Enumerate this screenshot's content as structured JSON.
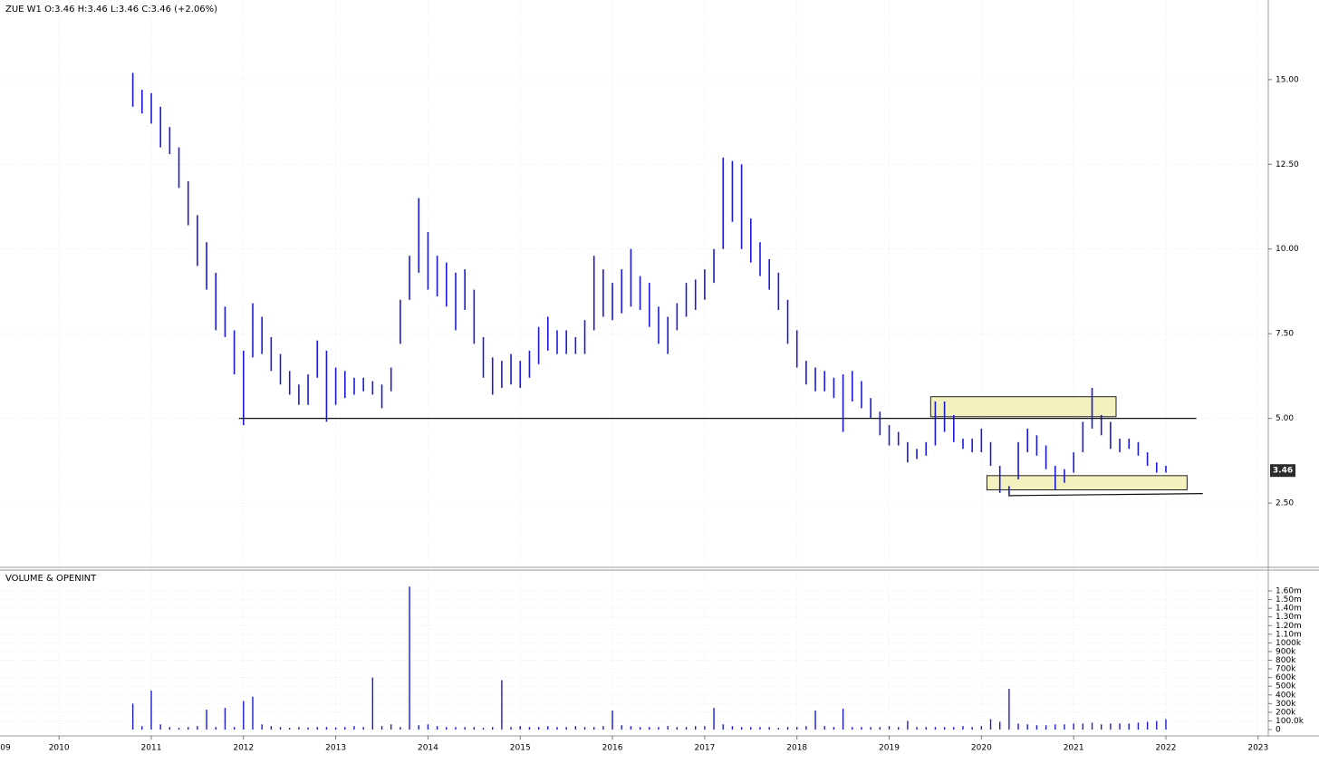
{
  "chart_data": {
    "type": "ohlc",
    "legend_text": "ZUE  W1  O:3.46  H:3.46  L:3.46  C:3.46  (+2.06%)",
    "volume_title": "VOLUME & OPENINT",
    "color": "#1a1ad6",
    "volume_color": "#1a1ad6",
    "grid": true,
    "last_price": 3.46,
    "xlim": [
      2009.36,
      2023.11
    ],
    "xticks": [
      {
        "value": 2009,
        "label": "09"
      },
      2010,
      2011,
      2012,
      2013,
      2014,
      2015,
      2016,
      2017,
      2018,
      2019,
      2020,
      2021,
      2022,
      2023
    ],
    "ylim": [
      0.63,
      17.35
    ],
    "yticks": [
      {
        "value": 2.5,
        "label": "2.50"
      },
      {
        "value": 5,
        "label": "5.00"
      },
      {
        "value": 7.5,
        "label": "7.50"
      },
      {
        "value": 10,
        "label": "10.00"
      },
      {
        "value": 12.5,
        "label": "12.50"
      },
      {
        "value": 15,
        "label": "15.00"
      }
    ],
    "volume_ylim": [
      -73000,
      1830000
    ],
    "volume_yticks": [
      0,
      {
        "value": 100000,
        "label": "100.0k"
      },
      {
        "value": 200000,
        "label": "200k"
      },
      {
        "value": 300000,
        "label": "300k"
      },
      {
        "value": 400000,
        "label": "400k"
      },
      {
        "value": 500000,
        "label": "500k"
      },
      {
        "value": 600000,
        "label": "600k"
      },
      {
        "value": 700000,
        "label": "700k"
      },
      {
        "value": 800000,
        "label": "800k"
      },
      {
        "value": 900000,
        "label": "900k"
      },
      {
        "value": 1000000,
        "label": "1000k"
      },
      {
        "value": 1100000,
        "label": "1.10m"
      },
      {
        "value": 1200000,
        "label": "1.20m"
      },
      {
        "value": 1300000,
        "label": "1.30m"
      },
      {
        "value": 1400000,
        "label": "1.40m"
      },
      {
        "value": 1500000,
        "label": "1.50m"
      },
      {
        "value": 1600000,
        "label": "1.60m"
      }
    ],
    "x": [
      2010.8,
      2010.9,
      2011.0,
      2011.1,
      2011.2,
      2011.3,
      2011.4,
      2011.5,
      2011.6,
      2011.7,
      2011.8,
      2011.9,
      2012.0,
      2012.1,
      2012.2,
      2012.3,
      2012.4,
      2012.5,
      2012.6,
      2012.7,
      2012.8,
      2012.9,
      2013.0,
      2013.1,
      2013.2,
      2013.3,
      2013.4,
      2013.5,
      2013.6,
      2013.7,
      2013.8,
      2013.9,
      2014.0,
      2014.1,
      2014.2,
      2014.3,
      2014.4,
      2014.5,
      2014.6,
      2014.7,
      2014.8,
      2014.9,
      2015.0,
      2015.1,
      2015.2,
      2015.3,
      2015.4,
      2015.5,
      2015.6,
      2015.7,
      2015.8,
      2015.9,
      2016.0,
      2016.1,
      2016.2,
      2016.3,
      2016.4,
      2016.5,
      2016.6,
      2016.7,
      2016.8,
      2016.9,
      2017.0,
      2017.1,
      2017.2,
      2017.3,
      2017.4,
      2017.5,
      2017.6,
      2017.7,
      2017.8,
      2017.9,
      2018.0,
      2018.1,
      2018.2,
      2018.3,
      2018.4,
      2018.5,
      2018.6,
      2018.7,
      2018.8,
      2018.9,
      2019.0,
      2019.1,
      2019.2,
      2019.3,
      2019.4,
      2019.5,
      2019.6,
      2019.7,
      2019.8,
      2019.9,
      2020.0,
      2020.1,
      2020.2,
      2020.3,
      2020.4,
      2020.5,
      2020.6,
      2020.7,
      2020.8,
      2020.9,
      2021.0,
      2021.1,
      2021.2,
      2021.3,
      2021.4,
      2021.5,
      2021.6,
      2021.7,
      2021.8,
      2021.9,
      2022.0
    ],
    "high": [
      15.2,
      14.7,
      14.6,
      14.2,
      13.6,
      13.0,
      12.0,
      11.0,
      10.2,
      9.3,
      8.3,
      7.6,
      7.0,
      8.4,
      8.0,
      7.4,
      6.9,
      6.4,
      6.0,
      6.3,
      7.3,
      7.0,
      6.5,
      6.4,
      6.2,
      6.2,
      6.1,
      6.0,
      6.5,
      8.5,
      9.8,
      11.5,
      10.5,
      9.8,
      9.6,
      9.3,
      9.4,
      8.8,
      7.4,
      6.8,
      6.7,
      6.9,
      6.7,
      7.0,
      7.7,
      8.0,
      7.6,
      7.6,
      7.4,
      7.9,
      9.8,
      9.4,
      9.0,
      9.4,
      10.0,
      9.2,
      9.0,
      8.3,
      8.0,
      8.4,
      9.0,
      9.1,
      9.4,
      10.0,
      12.7,
      12.6,
      12.5,
      10.9,
      10.2,
      9.7,
      9.3,
      8.5,
      7.6,
      6.7,
      6.5,
      6.4,
      6.2,
      6.3,
      6.4,
      6.1,
      5.6,
      5.2,
      4.8,
      4.6,
      4.3,
      4.1,
      4.3,
      5.5,
      5.5,
      5.1,
      4.4,
      4.4,
      4.7,
      4.3,
      3.6,
      3.0,
      4.3,
      4.7,
      4.5,
      4.2,
      3.6,
      3.5,
      4.0,
      4.9,
      5.9,
      5.1,
      4.9,
      4.4,
      4.4,
      4.3,
      4.0,
      3.7,
      3.6
    ],
    "low": [
      14.2,
      14.0,
      13.7,
      13.0,
      12.8,
      11.8,
      10.7,
      9.5,
      8.8,
      7.6,
      7.4,
      6.3,
      4.8,
      6.8,
      6.9,
      6.4,
      6.0,
      5.7,
      5.4,
      5.4,
      6.2,
      4.9,
      5.4,
      5.6,
      5.7,
      5.8,
      5.7,
      5.3,
      5.8,
      7.2,
      8.5,
      9.3,
      8.8,
      8.6,
      8.3,
      7.6,
      8.2,
      7.2,
      6.2,
      5.7,
      5.9,
      6.0,
      5.9,
      6.2,
      6.6,
      7.0,
      6.9,
      6.9,
      6.9,
      6.9,
      7.6,
      8.0,
      7.9,
      8.1,
      8.3,
      8.2,
      7.7,
      7.2,
      6.9,
      7.6,
      8.0,
      8.2,
      8.5,
      9.0,
      10.0,
      10.8,
      10.0,
      9.6,
      9.2,
      8.8,
      8.2,
      7.2,
      6.5,
      6.0,
      5.8,
      5.8,
      5.6,
      4.6,
      5.5,
      5.3,
      5.0,
      4.5,
      4.2,
      4.2,
      3.7,
      3.8,
      3.9,
      4.2,
      4.6,
      4.3,
      4.1,
      4.0,
      4.0,
      3.6,
      2.8,
      2.7,
      3.2,
      4.0,
      3.9,
      3.5,
      2.9,
      3.1,
      3.4,
      4.0,
      4.7,
      4.5,
      4.1,
      4.0,
      4.1,
      3.9,
      3.6,
      3.4,
      3.4
    ],
    "volume": [
      300000,
      40000,
      450000,
      60000,
      30000,
      20000,
      30000,
      40000,
      230000,
      30000,
      250000,
      30000,
      330000,
      380000,
      60000,
      40000,
      30000,
      20000,
      30000,
      25000,
      30000,
      30000,
      25000,
      30000,
      40000,
      30000,
      600000,
      40000,
      60000,
      30000,
      1650000,
      50000,
      60000,
      40000,
      30000,
      30000,
      30000,
      30000,
      20000,
      30000,
      570000,
      30000,
      40000,
      30000,
      30000,
      40000,
      30000,
      30000,
      40000,
      30000,
      30000,
      40000,
      220000,
      50000,
      40000,
      30000,
      30000,
      30000,
      40000,
      30000,
      30000,
      40000,
      40000,
      250000,
      60000,
      40000,
      30000,
      30000,
      30000,
      30000,
      20000,
      30000,
      30000,
      40000,
      220000,
      40000,
      30000,
      240000,
      30000,
      30000,
      30000,
      30000,
      40000,
      30000,
      100000,
      30000,
      30000,
      30000,
      30000,
      30000,
      40000,
      30000,
      40000,
      120000,
      90000,
      470000,
      70000,
      60000,
      50000,
      50000,
      60000,
      60000,
      70000,
      70000,
      80000,
      60000,
      70000,
      70000,
      70000,
      80000,
      90000,
      100000,
      120000
    ],
    "boxes": [
      {
        "x": [
          2019.45,
          2021.46
        ],
        "y": [
          5.05,
          5.64
        ]
      },
      {
        "x": [
          2020.06,
          2022.23
        ],
        "y": [
          2.89,
          3.31
        ]
      }
    ],
    "lines": [
      {
        "x": [
          2011.95,
          2022.33
        ],
        "y": [
          5.0,
          5.0
        ]
      },
      {
        "x": [
          2020.3,
          2022.4
        ],
        "y": [
          2.72,
          2.78
        ]
      }
    ]
  }
}
